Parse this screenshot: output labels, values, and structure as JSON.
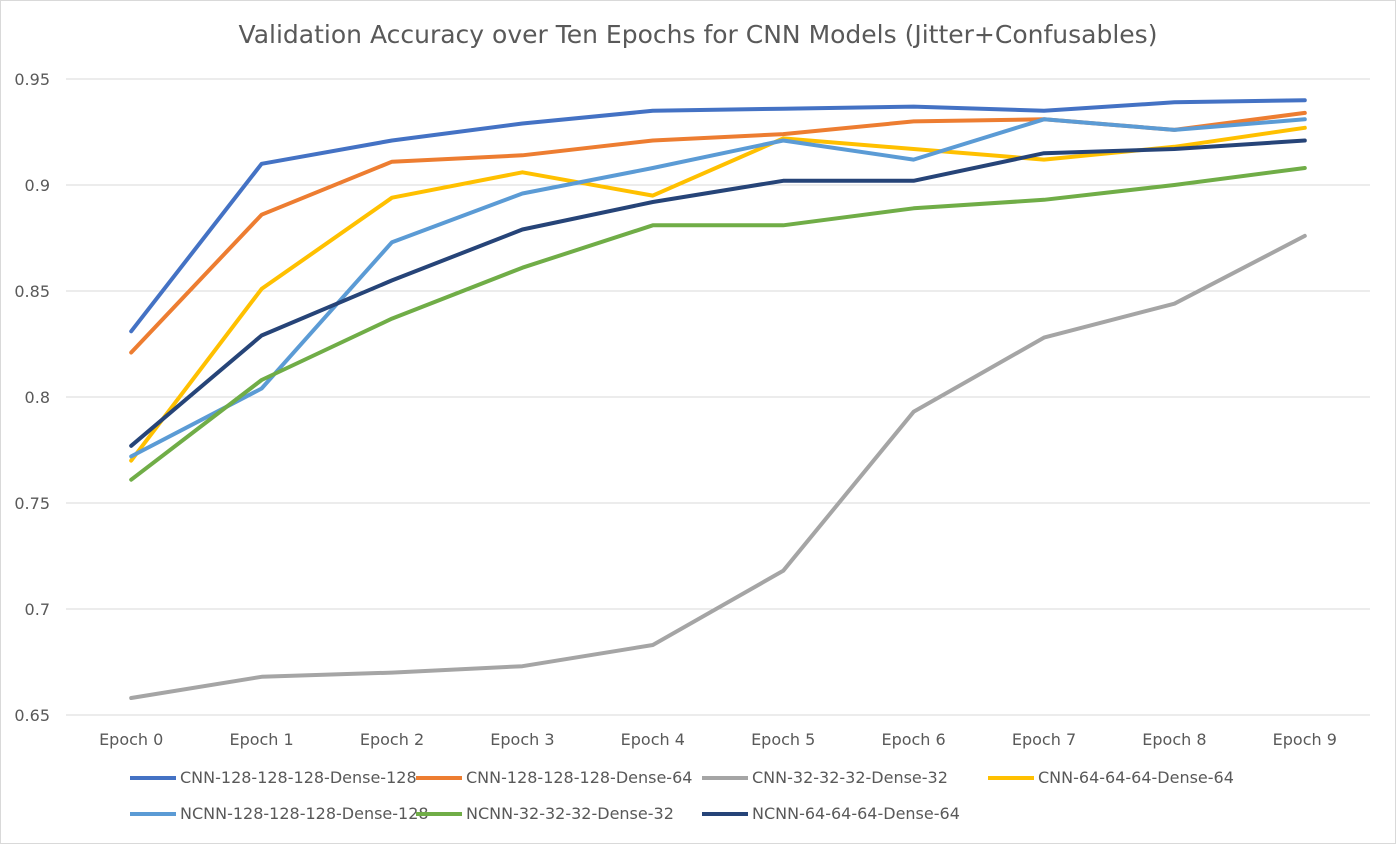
{
  "chart_data": {
    "type": "line",
    "title": "Validation Accuracy over Ten Epochs for CNN Models (Jitter+Confusables)",
    "categories": [
      "Epoch 0",
      "Epoch 1",
      "Epoch 2",
      "Epoch 3",
      "Epoch 4",
      "Epoch 5",
      "Epoch 6",
      "Epoch 7",
      "Epoch 8",
      "Epoch 9"
    ],
    "ylim": [
      0.65,
      0.95
    ],
    "yticks": [
      "0.65",
      "0.7",
      "0.75",
      "0.8",
      "0.85",
      "0.9",
      "0.95"
    ],
    "grid": true,
    "legend_position": "bottom",
    "series": [
      {
        "name": "CNN-128-128-128-Dense-128",
        "color": "#4472C4",
        "values": [
          0.831,
          0.91,
          0.921,
          0.929,
          0.935,
          0.936,
          0.937,
          0.935,
          0.939,
          0.94
        ]
      },
      {
        "name": "CNN-128-128-128-Dense-64",
        "color": "#ED7D31",
        "values": [
          0.821,
          0.886,
          0.911,
          0.914,
          0.921,
          0.924,
          0.93,
          0.931,
          0.926,
          0.934
        ]
      },
      {
        "name": "CNN-32-32-32-Dense-32",
        "color": "#A5A5A5",
        "values": [
          0.658,
          0.668,
          0.67,
          0.673,
          0.683,
          0.718,
          0.793,
          0.828,
          0.844,
          0.876
        ]
      },
      {
        "name": "CNN-64-64-64-Dense-64",
        "color": "#FFC000",
        "values": [
          0.77,
          0.851,
          0.894,
          0.906,
          0.895,
          0.922,
          0.917,
          0.912,
          0.918,
          0.927
        ]
      },
      {
        "name": "NCNN-128-128-128-Dense-128",
        "color": "#5B9BD5",
        "values": [
          0.772,
          0.804,
          0.873,
          0.896,
          0.908,
          0.921,
          0.912,
          0.931,
          0.926,
          0.931
        ]
      },
      {
        "name": "NCNN-32-32-32-Dense-32",
        "color": "#70AD47",
        "values": [
          0.761,
          0.808,
          0.837,
          0.861,
          0.881,
          0.881,
          0.889,
          0.893,
          0.9,
          0.908
        ]
      },
      {
        "name": "NCNN-64-64-64-Dense-64",
        "color": "#264478",
        "values": [
          0.777,
          0.829,
          0.855,
          0.879,
          0.892,
          0.902,
          0.902,
          0.915,
          0.917,
          0.921
        ]
      }
    ]
  }
}
